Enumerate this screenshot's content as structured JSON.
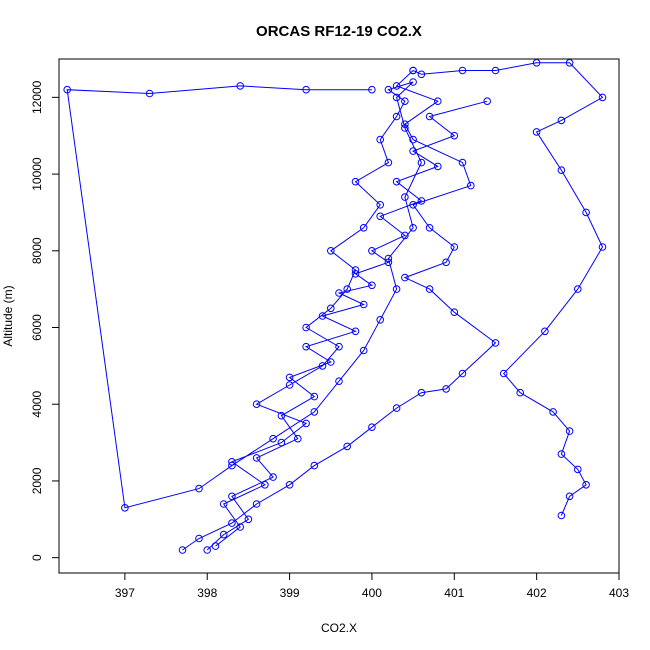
{
  "chart_data": {
    "type": "scatter",
    "title": "ORCAS RF12-19 CO2.X",
    "xlabel": "CO2.X",
    "ylabel": "Altitude (m)",
    "xlim": [
      396.2,
      403.0
    ],
    "ylim": [
      -400,
      13000
    ],
    "xticks": [
      397,
      398,
      399,
      400,
      401,
      402,
      403
    ],
    "yticks": [
      0,
      2000,
      4000,
      6000,
      8000,
      10000,
      12000
    ],
    "grid": false,
    "legend": "none",
    "colors": {
      "series": "#0000ff",
      "axes": "#000000"
    },
    "series": [
      {
        "x": [
          398.1,
          398.4,
          398.2,
          398.7,
          398.3,
          398.9,
          399.2,
          398.6,
          399.0,
          399.4,
          399.6,
          399.2,
          399.5,
          399.7,
          399.8,
          399.5,
          399.9,
          400.1,
          399.8,
          400.2,
          400.1,
          400.3,
          400.4,
          400.2,
          400.5,
          400.3,
          400.4,
          400.6,
          400.4,
          400.5,
          400.2,
          400.3,
          400.1,
          399.9,
          399.6,
          399.3,
          398.8,
          398.3,
          397.9,
          397.0,
          396.3,
          397.3,
          398.4,
          399.2,
          400.0
        ],
        "y": [
          300,
          800,
          1400,
          1900,
          2500,
          3000,
          3500,
          4000,
          4500,
          5000,
          5500,
          6000,
          6500,
          7000,
          7500,
          8000,
          8600,
          9200,
          9800,
          10300,
          10900,
          11500,
          11900,
          12200,
          12400,
          12000,
          11200,
          10300,
          9400,
          8600,
          7800,
          7000,
          6200,
          5400,
          4600,
          3800,
          3100,
          2400,
          1800,
          1300,
          12200,
          12100,
          12300,
          12200,
          12200
        ]
      },
      {
        "x": [
          397.7,
          397.9,
          398.3,
          398.6,
          399.0,
          399.3,
          399.7,
          400.0,
          400.3,
          400.6,
          400.9,
          401.1,
          401.5,
          401.0,
          400.7,
          400.4,
          400.9,
          401.0,
          400.7,
          400.5,
          401.2,
          401.1,
          400.5,
          400.4,
          400.8,
          400.3,
          400.5
        ],
        "y": [
          200,
          500,
          900,
          1400,
          1900,
          2400,
          2900,
          3400,
          3900,
          4300,
          4400,
          4800,
          5600,
          6400,
          7000,
          7300,
          7700,
          8100,
          8600,
          9200,
          9700,
          10300,
          10900,
          11300,
          11900,
          12300,
          12700
        ]
      },
      {
        "x": [
          402.3,
          402.4,
          402.6,
          402.5,
          402.3,
          402.4,
          402.2,
          401.8,
          401.6,
          402.1,
          402.5,
          402.8,
          402.6,
          402.3,
          402.0,
          402.3,
          402.8,
          402.4,
          402.0,
          401.5,
          401.1,
          400.6,
          400.5
        ],
        "y": [
          1100,
          1600,
          1900,
          2300,
          2700,
          3300,
          3800,
          4300,
          4800,
          5900,
          7000,
          8100,
          9000,
          10100,
          11100,
          11400,
          12000,
          12900,
          12900,
          12700,
          12700,
          12600,
          12700
        ]
      },
      {
        "x": [
          398.0,
          398.2,
          398.5,
          398.3,
          398.8,
          398.6,
          399.1,
          398.9,
          399.3,
          399.0,
          399.5,
          399.2,
          399.8,
          399.4,
          399.9,
          399.6,
          400.0,
          399.8,
          400.2,
          400.0,
          400.4,
          400.1,
          400.6,
          400.3,
          400.8,
          400.5,
          401.0,
          400.7,
          401.4
        ],
        "y": [
          200,
          600,
          1000,
          1600,
          2100,
          2600,
          3100,
          3700,
          4200,
          4700,
          5100,
          5500,
          5900,
          6300,
          6600,
          6900,
          7100,
          7400,
          7700,
          8000,
          8400,
          8900,
          9300,
          9800,
          10200,
          10600,
          11000,
          11500,
          11900
        ]
      }
    ]
  }
}
